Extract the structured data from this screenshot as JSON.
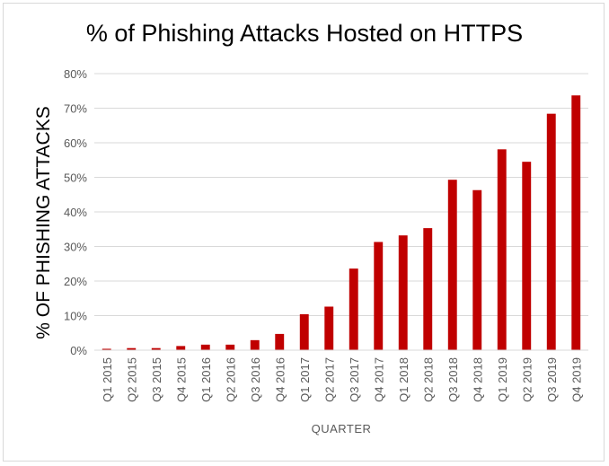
{
  "chart_data": {
    "type": "bar",
    "title": "% of Phishing Attacks Hosted on HTTPS",
    "xlabel": "QUARTER",
    "ylabel": "% OF PHISHING ATTACKS",
    "ylim": [
      0,
      80
    ],
    "y_ticks": [
      "0%",
      "10%",
      "20%",
      "30%",
      "40%",
      "50%",
      "60%",
      "70%",
      "80%"
    ],
    "y_tick_values": [
      0,
      10,
      20,
      30,
      40,
      50,
      60,
      70,
      80
    ],
    "grid": true,
    "legend": "none",
    "bar_color": "#c00000",
    "categories": [
      "Q1 2015",
      "Q2 2015",
      "Q3 2015",
      "Q4 2015",
      "Q1 2016",
      "Q2 2016",
      "Q3 2016",
      "Q4 2016",
      "Q1 2017",
      "Q2 2017",
      "Q3 2017",
      "Q4 2017",
      "Q1 2018",
      "Q2 2018",
      "Q3 2018",
      "Q4 2018",
      "Q1 2019",
      "Q2 2019",
      "Q3 2019",
      "Q4 2019"
    ],
    "values": [
      0.4,
      0.6,
      0.6,
      1.2,
      1.6,
      1.6,
      2.9,
      4.7,
      10.4,
      12.6,
      23.6,
      31.3,
      33.2,
      35.3,
      49.3,
      46.3,
      58.1,
      54.5,
      68.4,
      73.7
    ]
  }
}
